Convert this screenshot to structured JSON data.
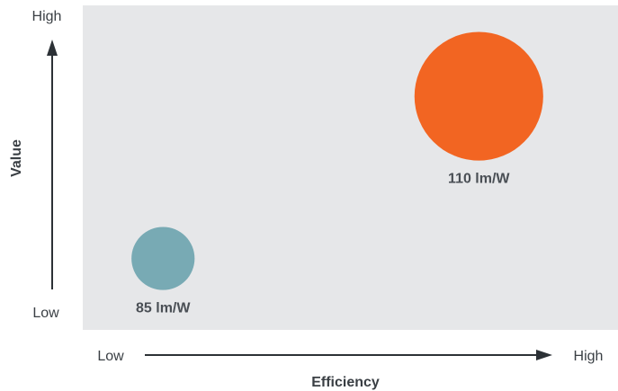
{
  "chart_data": {
    "type": "scatter",
    "title": "",
    "xlabel": "Efficiency",
    "ylabel": "Value",
    "x_ticks": {
      "low": "Low",
      "high": "High"
    },
    "y_ticks": {
      "low": "Low",
      "high": "High"
    },
    "xlim": [
      0,
      1
    ],
    "ylim": [
      0,
      1
    ],
    "grid": false,
    "points": [
      {
        "label": "85 lm/W",
        "x": 0.15,
        "y": 0.22,
        "size": 0.26,
        "color": "#78aab4"
      },
      {
        "label": "110 lm/W",
        "x": 0.74,
        "y": 0.72,
        "size": 0.53,
        "color": "#f26522"
      }
    ],
    "colors": {
      "plot_background": "#e6e7e9",
      "axis": "#2c3136",
      "text": "#3a3f44"
    }
  }
}
